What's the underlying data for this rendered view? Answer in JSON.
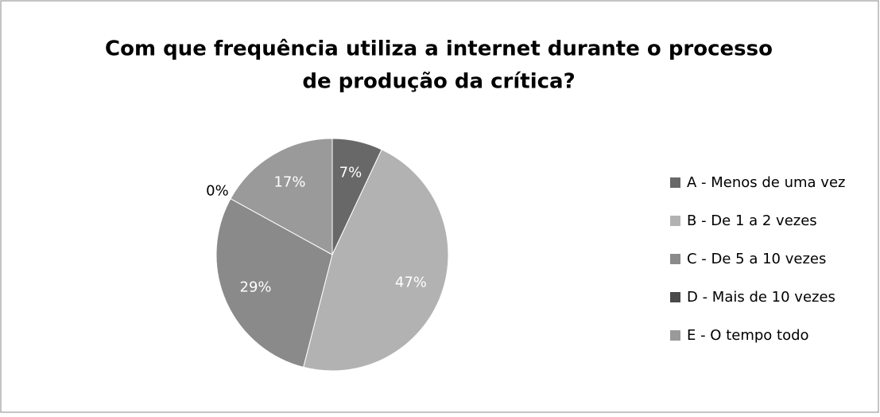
{
  "chart_data": {
    "type": "pie",
    "title": [
      "Com que frequência utiliza a internet durante o processo",
      "de produção da crítica?"
    ],
    "categories": [
      "A - Menos de uma vez",
      "B - De 1 a 2 vezes",
      "C - De 5 a 10 vezes",
      "D - Mais de 10 vezes",
      "E - O tempo todo"
    ],
    "values": [
      7,
      47,
      29,
      0,
      17
    ],
    "value_labels": [
      "7%",
      "47%",
      "29%",
      "0%",
      "17%"
    ],
    "colors": [
      "#686868",
      "#b2b2b2",
      "#8a8a8a",
      "#4a4a4a",
      "#9a9a9a"
    ],
    "legend": "right"
  }
}
